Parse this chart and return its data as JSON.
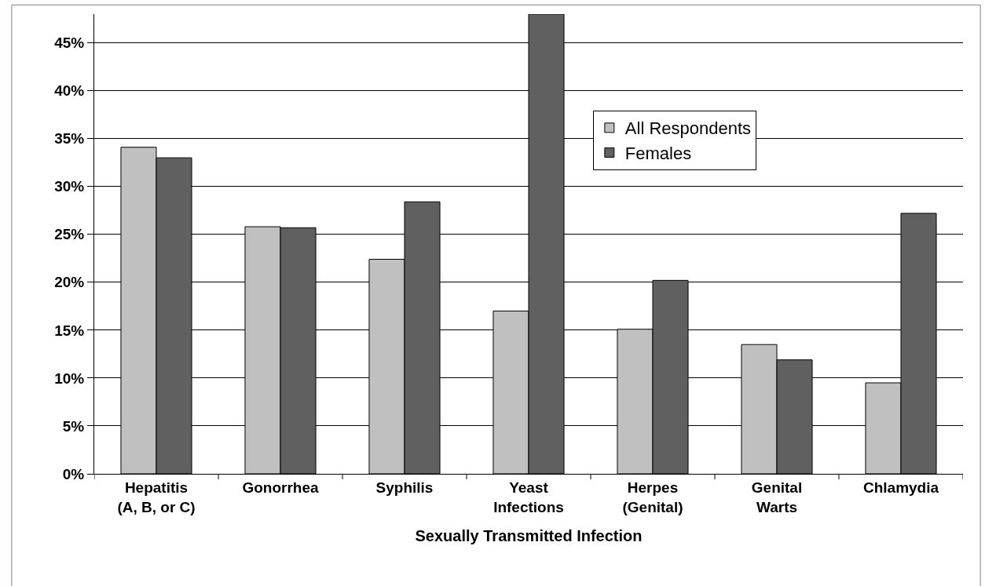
{
  "chart_data": {
    "type": "bar",
    "xlabel": "Sexually Transmitted Infection",
    "categories": [
      "Hepatitis\n(A, B, or C)",
      "Gonorrhea",
      "Syphilis",
      "Yeast\nInfections",
      "Herpes\n(Genital)",
      "Genital\nWarts",
      "Chlamydia"
    ],
    "series": [
      {
        "name": "All Respondents",
        "color": "#c0c0c0",
        "values": [
          34.1,
          25.8,
          22.4,
          17.0,
          15.1,
          13.5,
          9.5
        ]
      },
      {
        "name": "Females",
        "color": "#606060",
        "values": [
          33.0,
          25.7,
          28.4,
          48.0,
          20.2,
          11.9,
          27.2
        ]
      }
    ],
    "ylim": [
      0,
      48
    ],
    "yticks": [
      {
        "value": 0,
        "label": "0%"
      },
      {
        "value": 5,
        "label": "5%"
      },
      {
        "value": 10,
        "label": "10%"
      },
      {
        "value": 15,
        "label": "15%"
      },
      {
        "value": 20,
        "label": "20%"
      },
      {
        "value": 25,
        "label": "25%"
      },
      {
        "value": 30,
        "label": "30%"
      },
      {
        "value": 35,
        "label": "35%"
      },
      {
        "value": 40,
        "label": "40%"
      },
      {
        "value": 45,
        "label": "45%"
      }
    ],
    "grid": "y",
    "legend": "top right"
  }
}
